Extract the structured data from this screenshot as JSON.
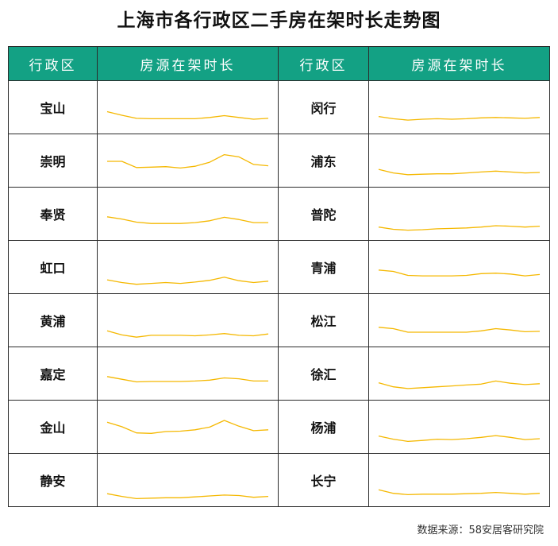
{
  "title": "上海市各行政区二手房在架时长走势图",
  "headers": {
    "district": "行政区",
    "duration": "房源在架时长"
  },
  "source": "数据来源：58安居客研究院",
  "colors": {
    "header_bg": "#13a184",
    "line": "#f5b800"
  },
  "chart_data": {
    "type": "line",
    "title": "上海市各行政区二手房在架时长走势图",
    "ylim": [
      0,
      100
    ],
    "grid": false,
    "series": [
      {
        "name": "宝山",
        "values": [
          42,
          34,
          27,
          26,
          26,
          26,
          26,
          29,
          33,
          29,
          25,
          27
        ]
      },
      {
        "name": "崇明",
        "values": [
          50,
          50,
          36,
          37,
          38,
          35,
          39,
          48,
          65,
          60,
          43,
          40
        ]
      },
      {
        "name": "奉贤",
        "values": [
          45,
          40,
          33,
          30,
          30,
          30,
          32,
          36,
          44,
          39,
          32,
          32
        ]
      },
      {
        "name": "虹口",
        "values": [
          23,
          17,
          13,
          15,
          17,
          15,
          18,
          22,
          29,
          21,
          17,
          20
        ]
      },
      {
        "name": "黄浦",
        "values": [
          28,
          19,
          14,
          18,
          18,
          18,
          17,
          19,
          22,
          18,
          17,
          21
        ]
      },
      {
        "name": "嘉定",
        "values": [
          45,
          39,
          33,
          34,
          34,
          34,
          35,
          37,
          42,
          40,
          35,
          35
        ]
      },
      {
        "name": "金山",
        "values": [
          62,
          52,
          38,
          37,
          41,
          42,
          45,
          51,
          66,
          53,
          43,
          45
        ]
      },
      {
        "name": "静安",
        "values": [
          21,
          15,
          10,
          11,
          12,
          12,
          14,
          16,
          18,
          17,
          13,
          15
        ]
      },
      {
        "name": "闵行",
        "values": [
          31,
          26,
          23,
          25,
          26,
          25,
          26,
          28,
          29,
          28,
          27,
          29
        ]
      },
      {
        "name": "浦东",
        "values": [
          32,
          24,
          20,
          21,
          22,
          22,
          24,
          26,
          28,
          26,
          24,
          25
        ]
      },
      {
        "name": "普陀",
        "values": [
          22,
          17,
          15,
          16,
          18,
          19,
          20,
          22,
          25,
          24,
          22,
          24
        ]
      },
      {
        "name": "青浦",
        "values": [
          45,
          42,
          33,
          32,
          32,
          32,
          33,
          37,
          38,
          36,
          32,
          35
        ]
      },
      {
        "name": "松江",
        "values": [
          36,
          33,
          25,
          25,
          25,
          25,
          25,
          28,
          33,
          30,
          26,
          27
        ]
      },
      {
        "name": "徐汇",
        "values": [
          31,
          22,
          18,
          20,
          22,
          24,
          26,
          28,
          35,
          30,
          27,
          29
        ]
      },
      {
        "name": "杨浦",
        "values": [
          31,
          24,
          19,
          21,
          24,
          23,
          25,
          28,
          32,
          28,
          23,
          25
        ]
      },
      {
        "name": "长宁",
        "values": [
          30,
          22,
          19,
          20,
          20,
          20,
          21,
          22,
          24,
          22,
          20,
          22
        ]
      }
    ]
  }
}
